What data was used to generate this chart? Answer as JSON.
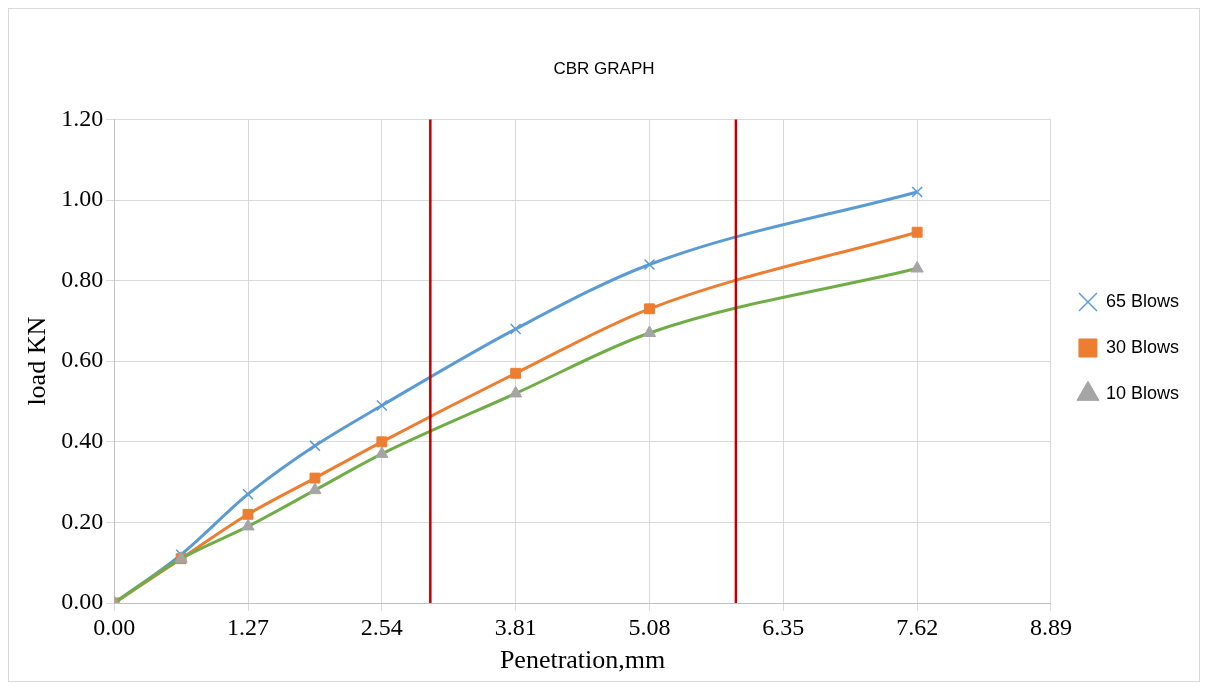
{
  "chart_data": {
    "type": "line",
    "title": "CBR GRAPH",
    "xlabel": "Penetration,mm",
    "ylabel": "load KN",
    "x": [
      0,
      0.635,
      1.27,
      1.905,
      2.54,
      3.81,
      5.08,
      7.62
    ],
    "series": [
      {
        "name": "65 Blows",
        "color": "#5b9bd5",
        "marker": "cross",
        "values": [
          0,
          0.12,
          0.27,
          0.39,
          0.49,
          0.68,
          0.84,
          1.02
        ]
      },
      {
        "name": "30 Blows",
        "color": "#ed7d31",
        "marker": "square",
        "values": [
          0,
          0.11,
          0.22,
          0.31,
          0.4,
          0.57,
          0.73,
          0.92
        ]
      },
      {
        "name": "10 Blows",
        "color": "#70ad47",
        "marker": "triangle",
        "values": [
          0,
          0.11,
          0.19,
          0.28,
          0.37,
          0.52,
          0.67,
          0.83
        ]
      }
    ],
    "xlim": [
      0,
      8.89
    ],
    "xticks": [
      {
        "value": 0,
        "label": "0.00"
      },
      1.27,
      2.54,
      3.81,
      5.08,
      6.35,
      7.62,
      8.89
    ],
    "ylim": [
      0,
      1.2
    ],
    "yticks": [
      {
        "value": 0,
        "label": "0.00"
      },
      {
        "value": 0.2,
        "label": "0.20"
      },
      {
        "value": 0.4,
        "label": "0.40"
      },
      {
        "value": 0.6,
        "label": "0.60"
      },
      {
        "value": 0.8,
        "label": "0.80"
      },
      {
        "value": 1,
        "label": "1.00"
      },
      {
        "value": 1.2,
        "label": "1.20"
      }
    ],
    "ref_lines": [
      {
        "axis": "x",
        "value": 3.0,
        "color": "#c00000"
      },
      {
        "axis": "x",
        "value": 5.9,
        "color": "#c00000"
      }
    ],
    "grid": true,
    "legend": "right"
  }
}
